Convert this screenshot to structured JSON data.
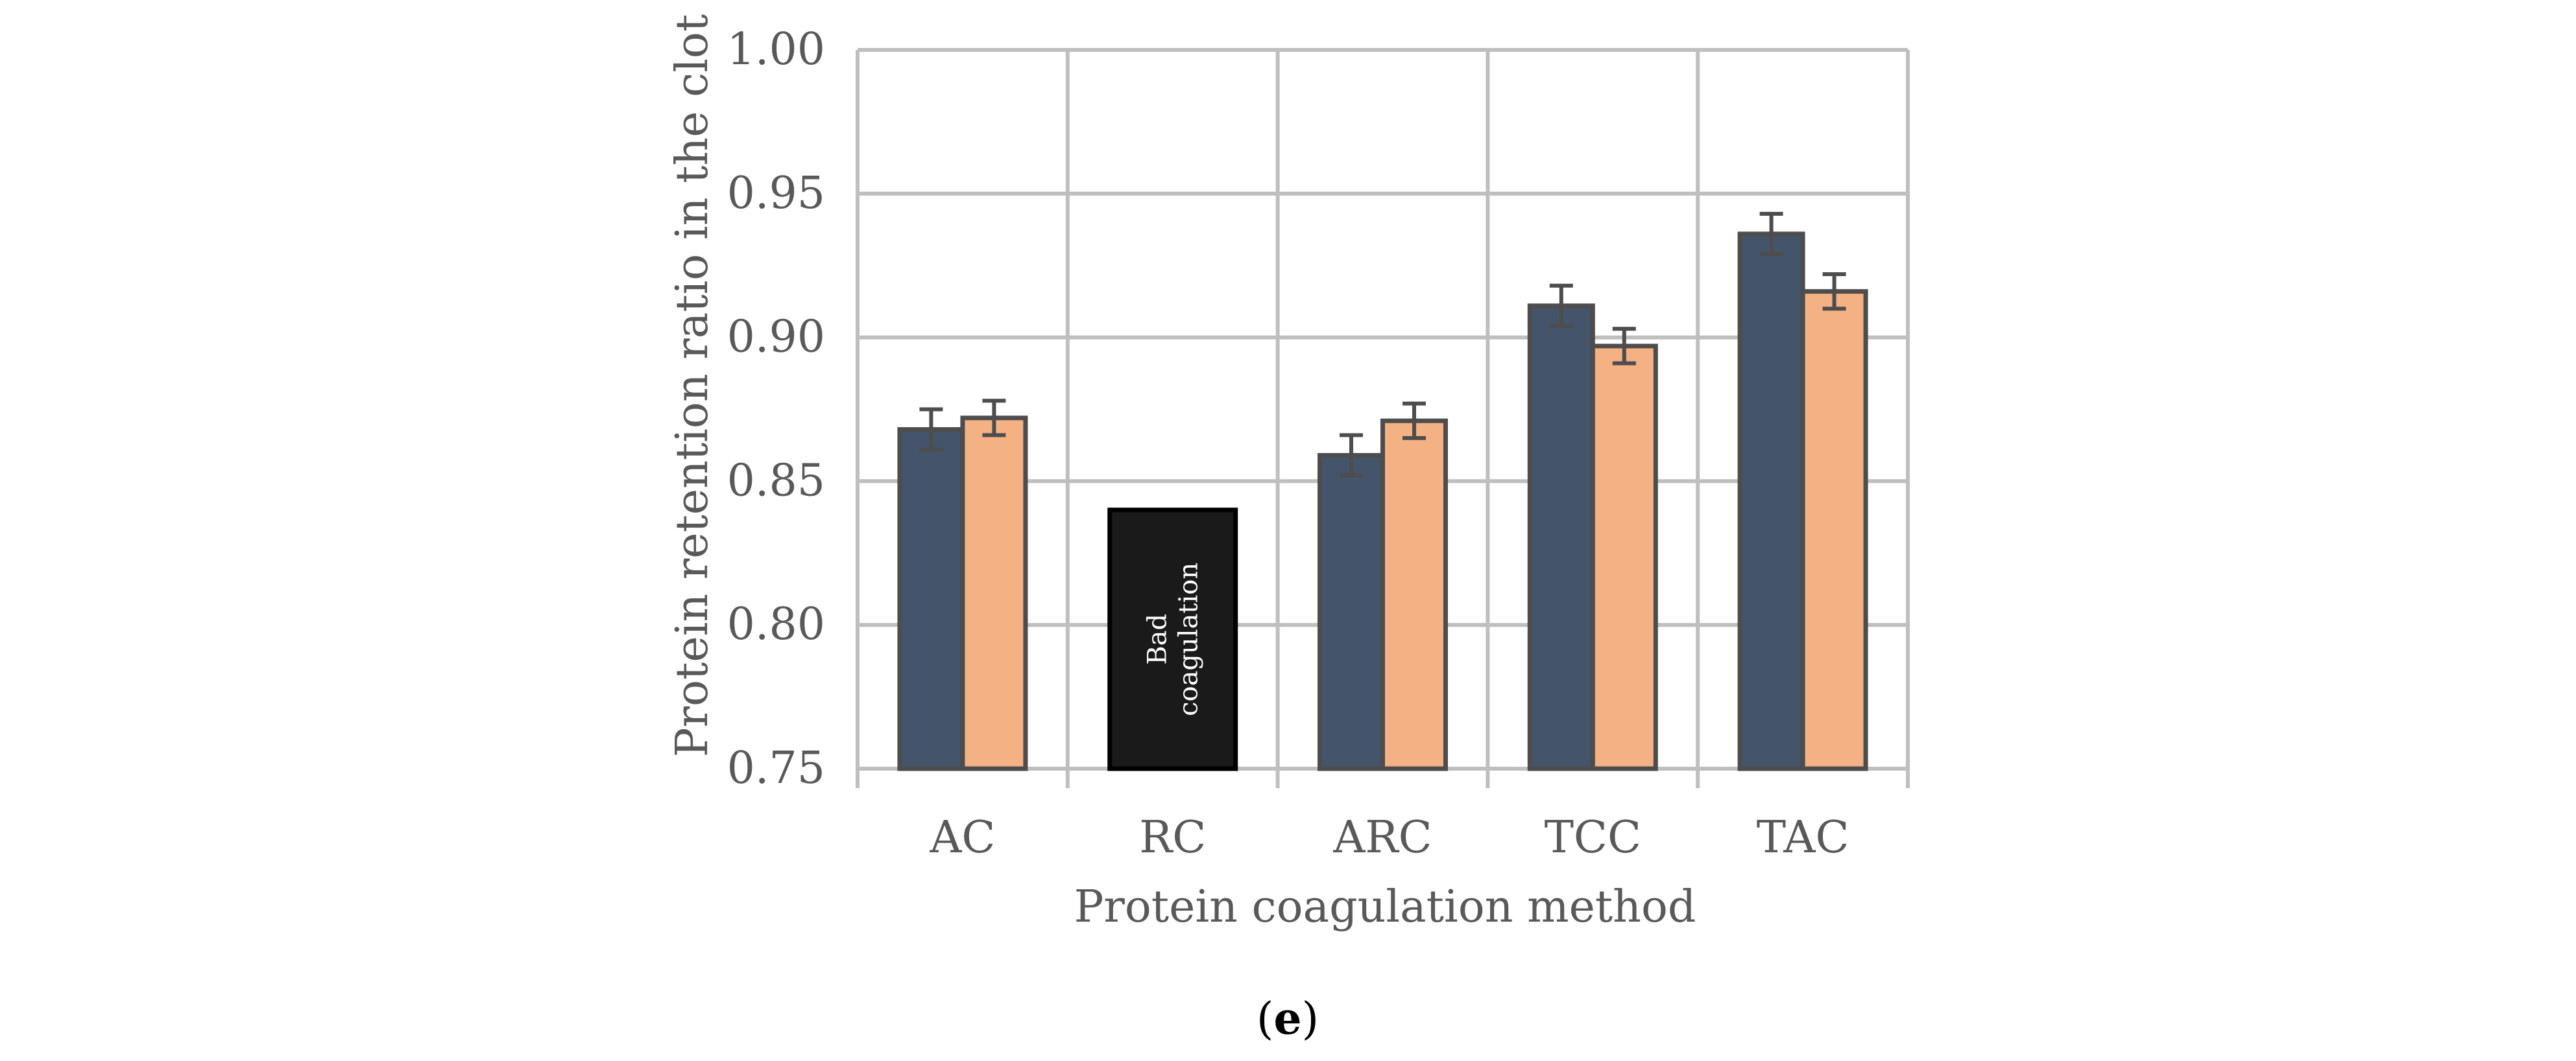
{
  "chart_data": {
    "type": "bar",
    "title": "",
    "xlabel": "Protein coagulation method",
    "ylabel": "Protein retention ratio in the clot",
    "ylim": [
      0.75,
      1.0
    ],
    "yticks": [
      "0.75",
      "0.80",
      "0.85",
      "0.90",
      "0.95",
      "1.00"
    ],
    "grid": true,
    "legend": "none",
    "categories": [
      "AC",
      "RC",
      "ARC",
      "TCC",
      "TAC"
    ],
    "series": [
      {
        "color": "#44546a",
        "values": [
          0.868,
          null,
          0.859,
          0.911,
          0.936
        ],
        "errors": [
          0.007,
          null,
          0.007,
          0.007,
          0.007
        ]
      },
      {
        "color": "#f4b183",
        "values": [
          0.872,
          null,
          0.871,
          0.897,
          0.916
        ],
        "errors": [
          0.006,
          null,
          0.006,
          0.006,
          0.006
        ]
      }
    ],
    "annotation": {
      "category": "RC",
      "text_line1": "Bad",
      "text_line2": "coagulation",
      "top_value": 0.84,
      "color": "#1a1a1a"
    }
  },
  "panel": {
    "open": "(",
    "letter": "e",
    "close": ")"
  }
}
